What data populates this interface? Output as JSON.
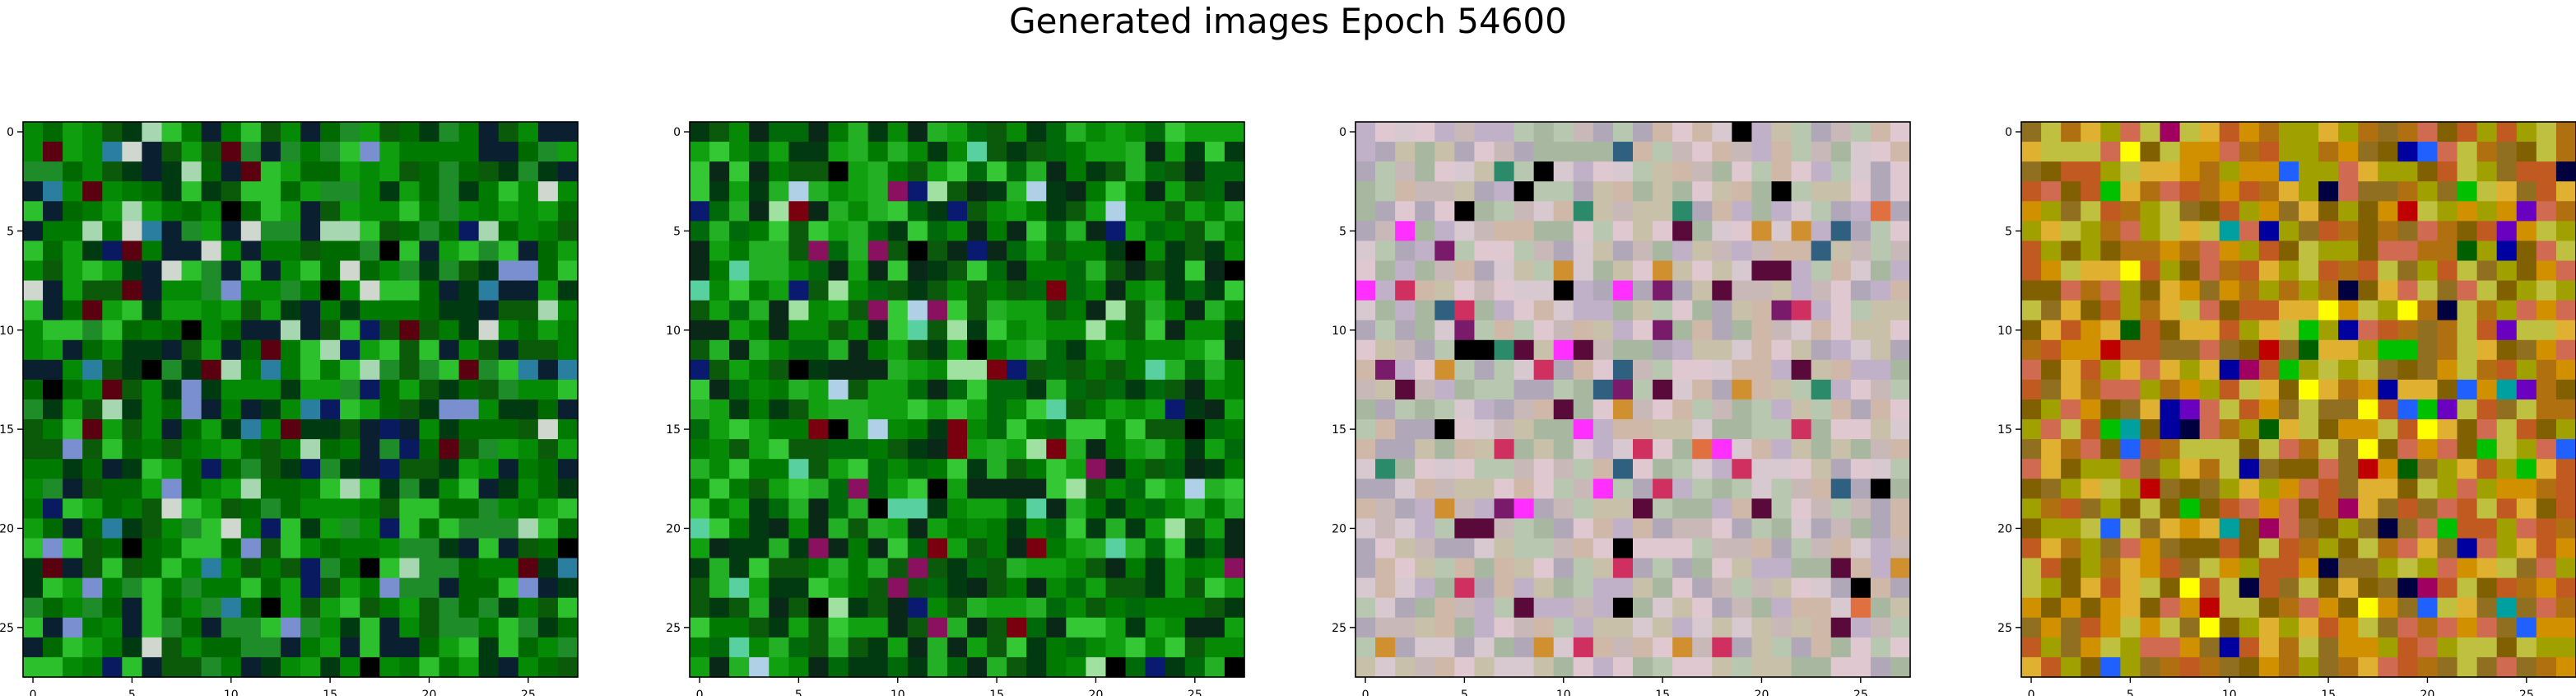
{
  "figure": {
    "title": "Generated images Epoch 54600"
  },
  "panels": [
    {
      "name": "generated-image-1",
      "palette": [
        "#007a00",
        "#058a05",
        "#0e9e0e",
        "#006a00",
        "#0a5a0a",
        "#1f8c2a",
        "#2cc12c",
        "#003a10",
        "#0a2030"
      ],
      "accents": [
        "#0a1a60",
        "#7a8fcf",
        "#a7d7b0",
        "#2a7fa0",
        "#5a0010",
        "#cfd7cf",
        "#000000"
      ]
    },
    {
      "name": "generated-image-2",
      "palette": [
        "#007a00",
        "#068a06",
        "#10a010",
        "#00690a",
        "#0b5a0b",
        "#24b024",
        "#34c834",
        "#013a10",
        "#0a2818"
      ],
      "accents": [
        "#000000",
        "#0a1a70",
        "#8a1060",
        "#b0d0e8",
        "#7a0010",
        "#58d0a0",
        "#a0e0a0"
      ]
    },
    {
      "name": "generated-image-3",
      "palette": [
        "#c8b8b8",
        "#d8c8d0",
        "#b8c8b0",
        "#c0b0c8",
        "#d0b8a8",
        "#a8b8a0",
        "#e0c8d0",
        "#b0a8b8",
        "#c8c0a8"
      ],
      "accents": [
        "#7a1a6a",
        "#d03060",
        "#2a8a6a",
        "#d09030",
        "#5a0a3a",
        "#ff30ff",
        "#306080",
        "#000000",
        "#e07040"
      ]
    },
    {
      "name": "generated-image-4",
      "palette": [
        "#b07010",
        "#d09000",
        "#a0a000",
        "#c05a20",
        "#e0b030",
        "#806000",
        "#d06a50",
        "#c0c040",
        "#907020"
      ],
      "accents": [
        "#0000a0",
        "#000040",
        "#c00000",
        "#00a0a0",
        "#6a00c0",
        "#00c000",
        "#2060ff",
        "#a00060",
        "#ffff00",
        "#006000"
      ]
    }
  ],
  "axes": {
    "xticks": [
      "0",
      "5",
      "10",
      "15",
      "20",
      "25"
    ],
    "yticks": [
      "0",
      "5",
      "10",
      "15",
      "20",
      "25"
    ],
    "grid_size": 28
  }
}
